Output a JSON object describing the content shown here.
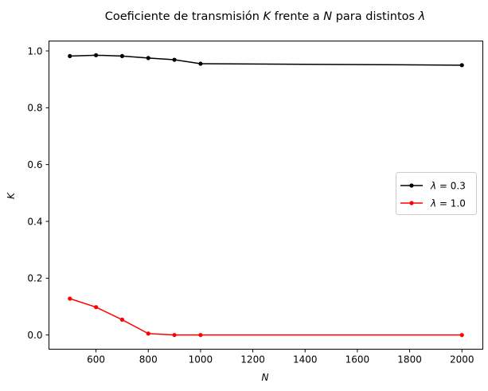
{
  "chart_data": {
    "type": "line",
    "title_parts": [
      {
        "text": "Coeficiente de transmisión ",
        "italic": false
      },
      {
        "text": "K",
        "italic": true
      },
      {
        "text": " frente a ",
        "italic": false
      },
      {
        "text": "N",
        "italic": true
      },
      {
        "text": " para distintos ",
        "italic": false
      },
      {
        "text": "λ",
        "italic": true
      }
    ],
    "xlabel": "N",
    "ylabel": "K",
    "xlim": [
      420,
      2080
    ],
    "ylim": [
      -0.05,
      1.035
    ],
    "xticks": [
      600,
      800,
      1000,
      1200,
      1400,
      1600,
      1800,
      2000
    ],
    "xtick_labels": [
      "600",
      "800",
      "1000",
      "1200",
      "1400",
      "1600",
      "1800",
      "2000"
    ],
    "yticks": [
      0.0,
      0.2,
      0.4,
      0.6,
      0.8,
      1.0
    ],
    "ytick_labels": [
      "0.0",
      "0.2",
      "0.4",
      "0.6",
      "0.8",
      "1.0"
    ],
    "grid": false,
    "legend_position": "center-right",
    "series": [
      {
        "name_parts": [
          {
            "text": "λ",
            "italic": true
          },
          {
            "text": " = 0.3",
            "italic": false
          }
        ],
        "color": "#000000",
        "marker": "dot",
        "x": [
          500,
          600,
          700,
          800,
          900,
          1000,
          2000
        ],
        "y": [
          0.982,
          0.985,
          0.982,
          0.975,
          0.969,
          0.955,
          0.95
        ]
      },
      {
        "name_parts": [
          {
            "text": "λ",
            "italic": true
          },
          {
            "text": " = 1.0",
            "italic": false
          }
        ],
        "color": "#ff0000",
        "marker": "dot",
        "x": [
          500,
          600,
          700,
          800,
          900,
          1000,
          2000
        ],
        "y": [
          0.128,
          0.098,
          0.054,
          0.005,
          0.0,
          0.0,
          0.0
        ]
      }
    ]
  }
}
